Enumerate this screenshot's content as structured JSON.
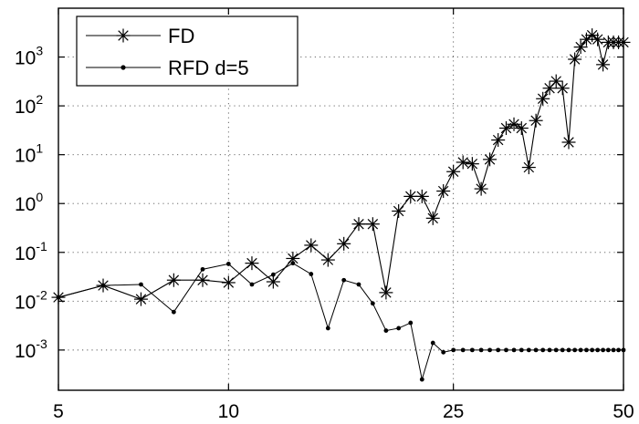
{
  "chart_data": {
    "type": "line",
    "title": "",
    "xlabel": "",
    "ylabel": "",
    "x_scale": "log",
    "y_scale": "log",
    "xlim": [
      5,
      50
    ],
    "ylim": [
      0.00015,
      10000
    ],
    "grid": true,
    "legend_position": "top-left",
    "x_ticks": [
      {
        "value": 5,
        "label": "5"
      },
      {
        "value": 10,
        "label": "10"
      },
      {
        "value": 25,
        "label": "25"
      },
      {
        "value": 50,
        "label": "50"
      }
    ],
    "y_ticks": [
      {
        "value": 0.001,
        "base": "10",
        "exp": "-3"
      },
      {
        "value": 0.01,
        "base": "10",
        "exp": "-2"
      },
      {
        "value": 0.1,
        "base": "10",
        "exp": "-1"
      },
      {
        "value": 1,
        "base": "10",
        "exp": "0"
      },
      {
        "value": 10,
        "base": "10",
        "exp": "1"
      },
      {
        "value": 100,
        "base": "10",
        "exp": "2"
      },
      {
        "value": 1000,
        "base": "10",
        "exp": "3"
      }
    ],
    "series": [
      {
        "name": "FD",
        "marker": "asterisk",
        "x": [
          5,
          6,
          7,
          8,
          9,
          10,
          11,
          12,
          13,
          14,
          15,
          16,
          17,
          18,
          19,
          20,
          21,
          22,
          23,
          24,
          25,
          26,
          27,
          28,
          29,
          30,
          31,
          32,
          33,
          34,
          35,
          36,
          37,
          38,
          39,
          40,
          41,
          42,
          43,
          44,
          45,
          46,
          47,
          48,
          49,
          50
        ],
        "y": [
          0.012,
          0.021,
          0.011,
          0.027,
          0.027,
          0.024,
          0.06,
          0.025,
          0.075,
          0.14,
          0.07,
          0.15,
          0.38,
          0.38,
          0.015,
          0.7,
          1.4,
          1.4,
          0.5,
          1.8,
          4.5,
          7,
          6.5,
          2,
          8,
          20,
          35,
          42,
          35,
          5.5,
          50,
          140,
          230,
          320,
          230,
          18,
          900,
          1600,
          2300,
          2800,
          2300,
          700,
          2000,
          2000,
          2000,
          2000
        ]
      },
      {
        "name": "RFD d=5",
        "marker": "dot",
        "x": [
          5,
          6,
          7,
          8,
          9,
          10,
          11,
          12,
          13,
          14,
          15,
          16,
          17,
          18,
          19,
          20,
          21,
          22,
          23,
          24,
          25,
          26,
          27,
          28,
          29,
          30,
          31,
          32,
          33,
          34,
          35,
          36,
          37,
          38,
          39,
          40,
          41,
          42,
          43,
          44,
          45,
          46,
          47,
          48,
          49,
          50
        ],
        "y": [
          0.012,
          0.021,
          0.022,
          0.006,
          0.045,
          0.058,
          0.022,
          0.035,
          0.06,
          0.036,
          0.0028,
          0.027,
          0.022,
          0.009,
          0.0025,
          0.0028,
          0.0036,
          0.00025,
          0.0014,
          0.0009,
          0.001,
          0.001,
          0.001,
          0.001,
          0.001,
          0.001,
          0.001,
          0.001,
          0.001,
          0.001,
          0.001,
          0.001,
          0.001,
          0.001,
          0.001,
          0.001,
          0.001,
          0.001,
          0.001,
          0.001,
          0.001,
          0.001,
          0.001,
          0.001,
          0.001,
          0.001
        ]
      }
    ]
  }
}
